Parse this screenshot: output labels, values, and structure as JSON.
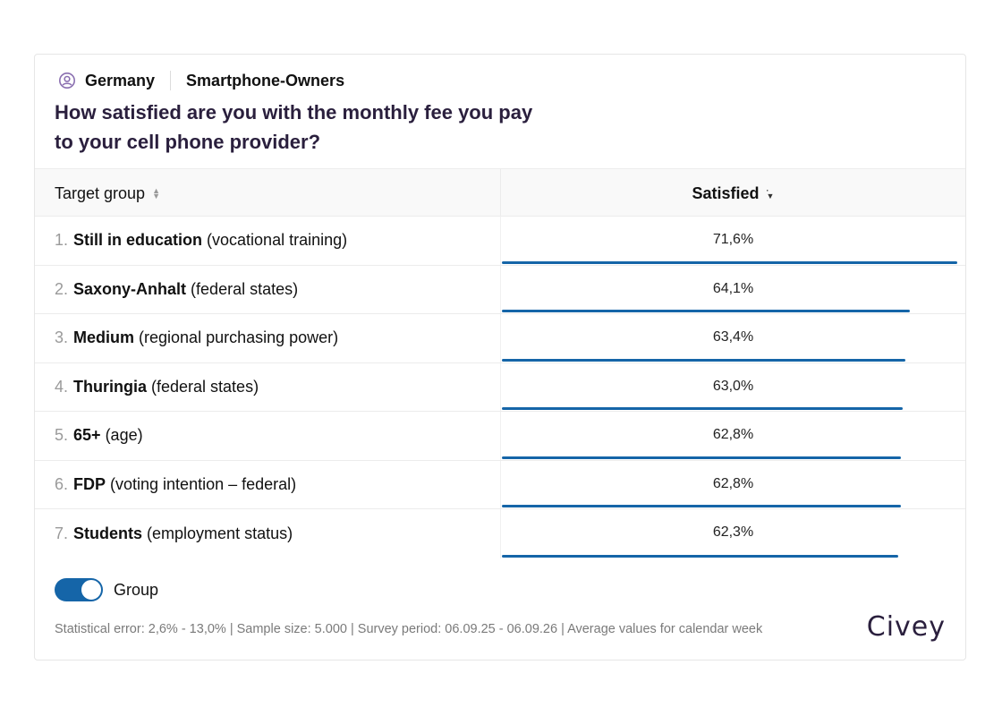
{
  "header": {
    "location_icon": "location-person-icon",
    "region": "Germany",
    "audience": "Smartphone-Owners",
    "question": "How satisfied are you with the monthly fee you pay\nto your cell phone provider?"
  },
  "table": {
    "col_target": "Target group",
    "col_value": "Satisfied",
    "accent_color": "#1565a8"
  },
  "chart_data": {
    "type": "bar",
    "orientation": "horizontal",
    "series": [
      {
        "name": "Satisfied",
        "values": [
          71.6,
          64.1,
          63.4,
          63.0,
          62.8,
          62.8,
          62.3
        ]
      }
    ],
    "rows": [
      {
        "rank": "1.",
        "name": "Still in education",
        "category": "(vocational training)",
        "label": "71,6%",
        "value": 71.6
      },
      {
        "rank": "2.",
        "name": "Saxony-Anhalt",
        "category": "(federal states)",
        "label": "64,1%",
        "value": 64.1
      },
      {
        "rank": "3.",
        "name": "Medium",
        "category": "(regional purchasing power)",
        "label": "63,4%",
        "value": 63.4
      },
      {
        "rank": "4.",
        "name": "Thuringia",
        "category": "(federal states)",
        "label": "63,0%",
        "value": 63.0
      },
      {
        "rank": "5.",
        "name": "65+",
        "category": "(age)",
        "label": "62,8%",
        "value": 62.8
      },
      {
        "rank": "6.",
        "name": "FDP",
        "category": "(voting intention – federal)",
        "label": "62,8%",
        "value": 62.8
      },
      {
        "rank": "7.",
        "name": "Students",
        "category": "(employment status)",
        "label": "62,3%",
        "value": 62.3
      }
    ]
  },
  "controls": {
    "group_label": "Group",
    "group_on": true
  },
  "footer": {
    "text": "Statistical error: 2,6% - 13,0% | Sample size: 5.000 | Survey period: 06.09.25 - 06.09.26 | Average values for calendar week",
    "logo": "Civey"
  }
}
